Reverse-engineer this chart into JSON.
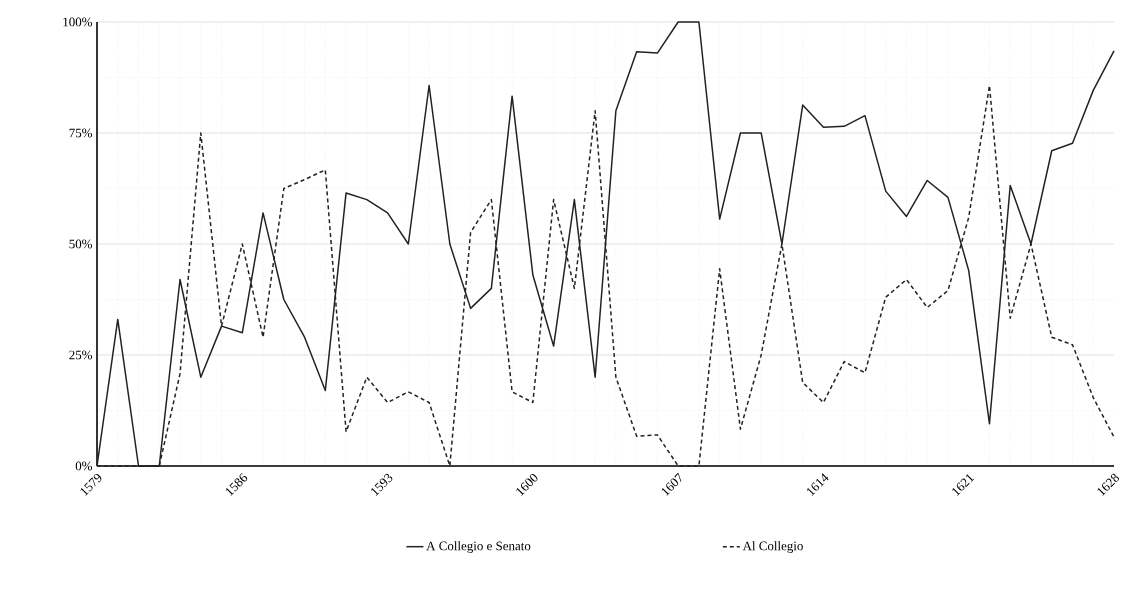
{
  "chart_data": {
    "type": "line",
    "x": [
      1579,
      1580,
      1581,
      1582,
      1583,
      1584,
      1585,
      1586,
      1587,
      1588,
      1589,
      1590,
      1591,
      1592,
      1593,
      1594,
      1595,
      1596,
      1597,
      1598,
      1599,
      1600,
      1601,
      1602,
      1603,
      1604,
      1605,
      1606,
      1607,
      1608,
      1609,
      1610,
      1611,
      1612,
      1613,
      1614,
      1615,
      1616,
      1617,
      1618,
      1619,
      1620,
      1621,
      1622,
      1623,
      1624,
      1625,
      1626,
      1627,
      1628
    ],
    "series": [
      {
        "name": "A Collegio e Senato",
        "color": "#222222",
        "line_style": "solid",
        "values": [
          0,
          33,
          0,
          0,
          42,
          20,
          31.5,
          30,
          57,
          37.5,
          29,
          17,
          61.5,
          60,
          57,
          50,
          85.7,
          50,
          35.5,
          40,
          83.3,
          43,
          27,
          60,
          20,
          80,
          93.3,
          93,
          100,
          100,
          55.6,
          75,
          75,
          50,
          81.3,
          76.3,
          76.5,
          78.9,
          61.9,
          56.2,
          64.3,
          60.5,
          44,
          9.5,
          63.2,
          50,
          71,
          72.7,
          84.6,
          93.5
        ]
      },
      {
        "name": "Al Collegio",
        "color": "#222222",
        "line_style": "dashed",
        "values": [
          0,
          0,
          0,
          0,
          20.8,
          75,
          31.5,
          50,
          29,
          62.5,
          64.5,
          66.7,
          7.7,
          20,
          14.3,
          16.7,
          14.3,
          0,
          52.6,
          60,
          16.7,
          14.3,
          60,
          40,
          80,
          20,
          6.7,
          7,
          0,
          0,
          44.4,
          8.3,
          25,
          50,
          18.8,
          14.3,
          23.5,
          21,
          38,
          42,
          35.7,
          39.5,
          56,
          85.7,
          33.3,
          50,
          29,
          27.3,
          15.4,
          6.5
        ]
      }
    ],
    "xlim": [
      1579,
      1628
    ],
    "xticks": [
      1579,
      1586,
      1593,
      1600,
      1607,
      1614,
      1621,
      1628
    ],
    "ylim": [
      0,
      100
    ],
    "yticks": [
      {
        "value": 0,
        "label": "0%"
      },
      {
        "value": 25,
        "label": "25%"
      },
      {
        "value": 50,
        "label": "50%"
      },
      {
        "value": 75,
        "label": "75%"
      },
      {
        "value": 100,
        "label": "100%"
      }
    ],
    "grid": true,
    "legend": "bottom",
    "marker": "none"
  }
}
